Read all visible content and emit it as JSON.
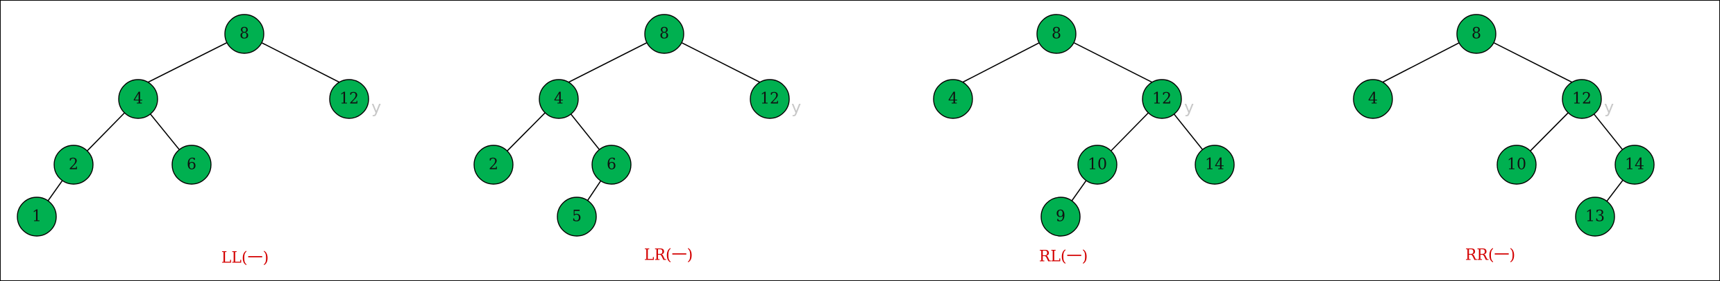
{
  "node_fill": "#00b050",
  "caption_color": "#d40000",
  "diagrams": [
    {
      "caption": "LL(一)",
      "nodes": [
        "8",
        "4",
        "12",
        "2",
        "6",
        "1"
      ],
      "watermark": "y"
    },
    {
      "caption": "LR(一)",
      "nodes": [
        "8",
        "4",
        "12",
        "2",
        "6",
        "5"
      ],
      "watermark": "y"
    },
    {
      "caption": "RL(一)",
      "nodes": [
        "8",
        "4",
        "12",
        "10",
        "14",
        "9"
      ],
      "watermark": "y"
    },
    {
      "caption": "RR(一)",
      "nodes": [
        "8",
        "4",
        "12",
        "10",
        "14",
        "13"
      ],
      "watermark": "y"
    }
  ]
}
